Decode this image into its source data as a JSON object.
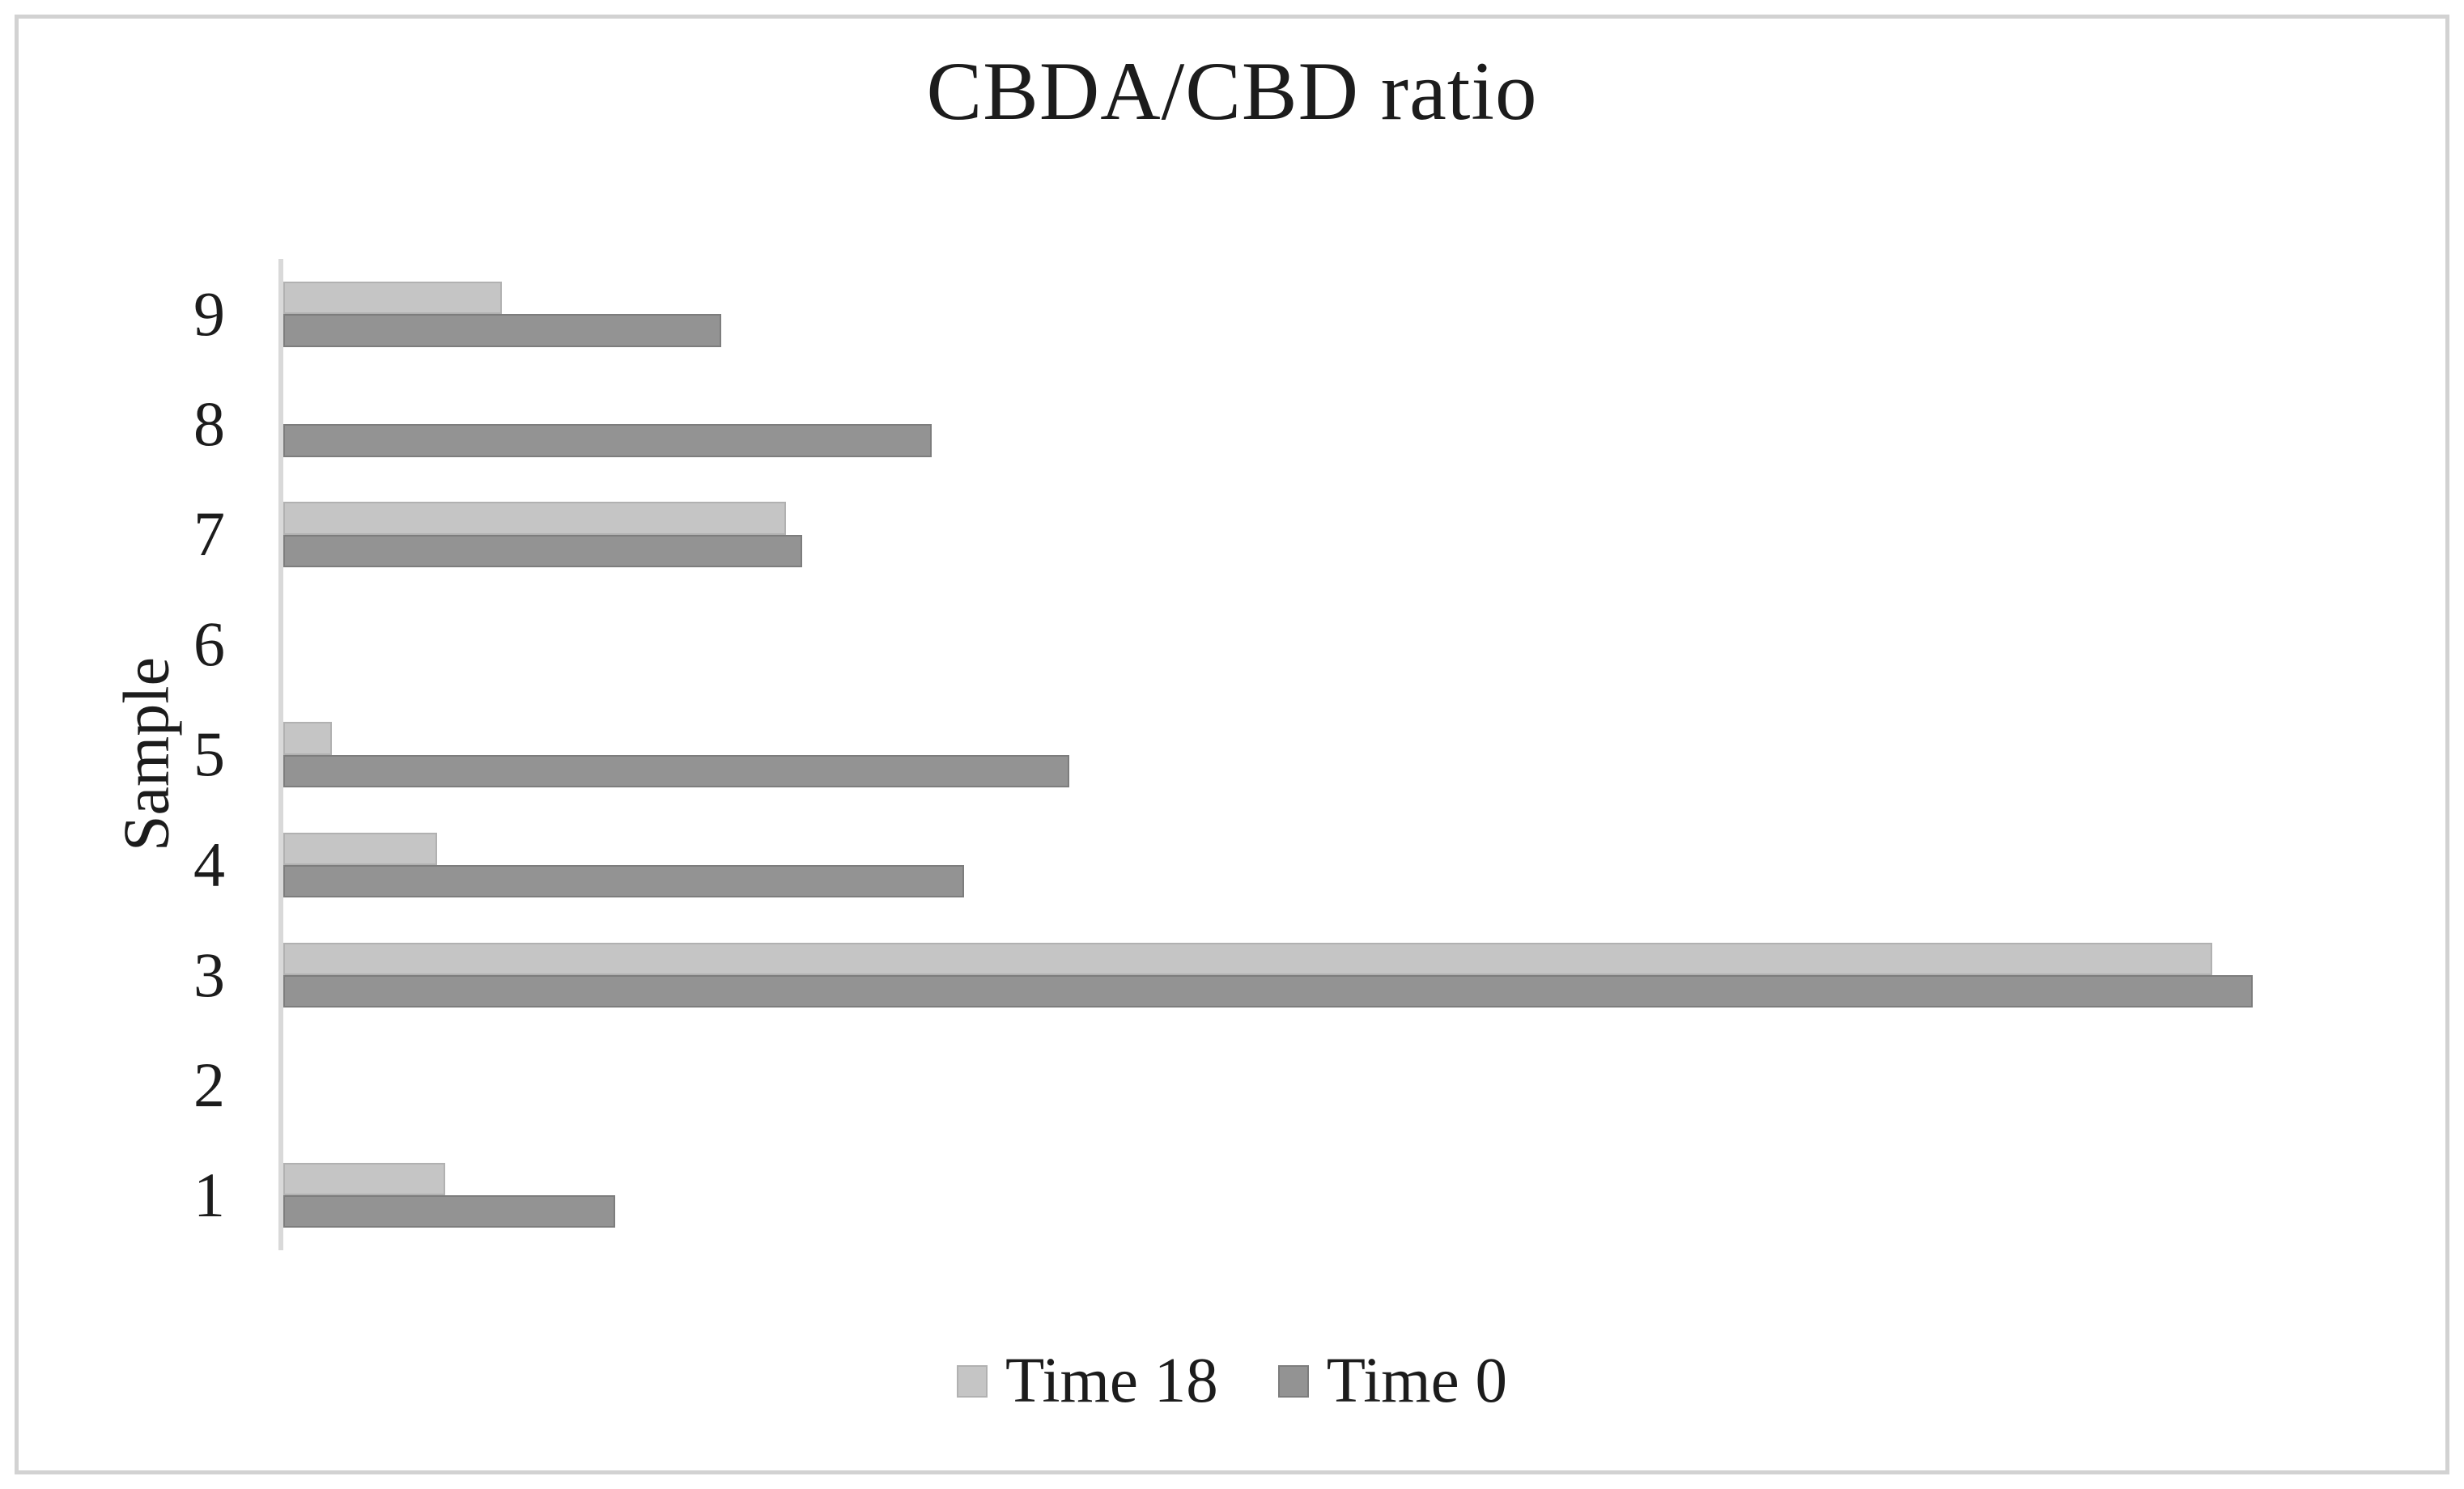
{
  "figure": {
    "background": "#ffffff",
    "frame_border_color": "#d2d2d2",
    "axis_line_color": "#d9d9d9",
    "text_color": "#1c1c1c"
  },
  "chart_data": {
    "type": "bar",
    "orientation": "horizontal",
    "title": "CBDA/CBD ratio",
    "xlabel": "",
    "ylabel": "Sample",
    "categories_top_to_bottom": [
      "9",
      "8",
      "7",
      "6",
      "5",
      "4",
      "3",
      "2",
      "1"
    ],
    "series": [
      {
        "name": "Time 18",
        "color": "#c5c5c5",
        "border_color": "#b1b1b1",
        "values_top_to_bottom": [
          2.7,
          0,
          6.2,
          0,
          0.6,
          1.9,
          23.8,
          0,
          2.0
        ]
      },
      {
        "name": "Time 0",
        "color": "#939393",
        "border_color": "#7d7d7d",
        "values_top_to_bottom": [
          5.4,
          8.0,
          6.4,
          0,
          9.7,
          8.4,
          24.3,
          0,
          4.1
        ]
      }
    ],
    "xlim": [
      0,
      26.7
    ],
    "x_axis_tick_labels_visible": false,
    "value_note": "No x-axis scale is shown in the image; values are estimated relative units read from bar lengths",
    "grid": false,
    "legend_position": "bottom"
  }
}
